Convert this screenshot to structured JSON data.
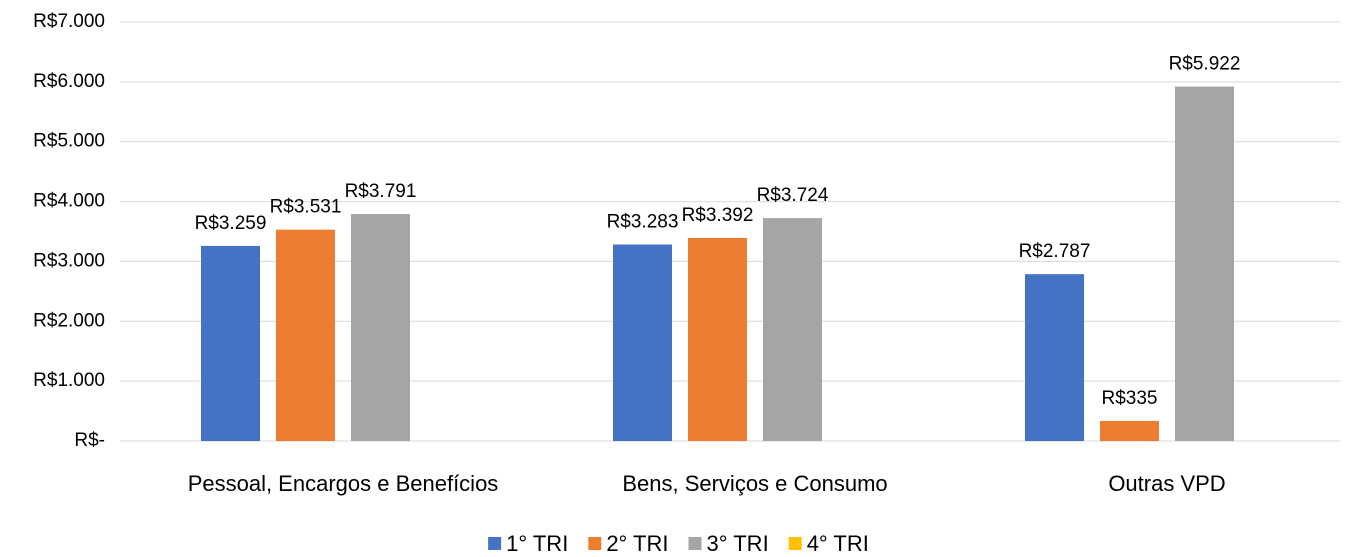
{
  "chart_data": {
    "type": "bar",
    "categories": [
      "Pessoal, Encargos e Benefícios",
      "Bens, Serviços e Consumo",
      "Outras VPD"
    ],
    "series": [
      {
        "name": "1° TRI",
        "color": "#4472c4",
        "values": [
          3259,
          3283,
          2787
        ],
        "value_labels": [
          "R$3.259",
          "R$3.283",
          "R$2.787"
        ]
      },
      {
        "name": "2° TRI",
        "color": "#ed7d31",
        "values": [
          3531,
          3392,
          335
        ],
        "value_labels": [
          "R$3.531",
          "R$3.392",
          "R$335"
        ]
      },
      {
        "name": "3° TRI",
        "color": "#a5a5a5",
        "values": [
          3791,
          3724,
          5922
        ],
        "value_labels": [
          "R$3.791",
          "R$3.724",
          "R$5.922"
        ]
      },
      {
        "name": "4° TRI",
        "color": "#ffc000",
        "values": [
          null,
          null,
          null
        ],
        "value_labels": [
          null,
          null,
          null
        ]
      }
    ],
    "ylim": [
      0,
      7000
    ],
    "yticks": [
      {
        "value": 0,
        "label": "R$-"
      },
      {
        "value": 1000,
        "label": "R$1.000"
      },
      {
        "value": 2000,
        "label": "R$2.000"
      },
      {
        "value": 3000,
        "label": "R$3.000"
      },
      {
        "value": 4000,
        "label": "R$4.000"
      },
      {
        "value": 5000,
        "label": "R$5.000"
      },
      {
        "value": 6000,
        "label": "R$6.000"
      },
      {
        "value": 7000,
        "label": "R$7.000"
      }
    ],
    "grid": true,
    "legend": "bottom"
  }
}
